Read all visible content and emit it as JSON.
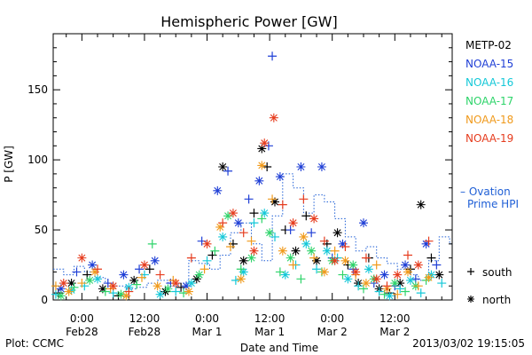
{
  "colors": {
    "METP-02": "#000000",
    "NOAA-15": "#1f3fd6",
    "NOAA-16": "#14c8d8",
    "NOAA-17": "#2ed46a",
    "NOAA-18": "#f09a1c",
    "NOAA-19": "#e63c1e",
    "ovation": "#1f5fd6"
  },
  "footer": {
    "left": "Plot: CCMC",
    "right": "2013/03/02 19:15:05"
  },
  "chart_data": {
    "type": "scatter",
    "title": "Hemispheric Power [GW]",
    "xlabel": "Date and Time",
    "ylabel": "P [GW]",
    "ylim": [
      0,
      190
    ],
    "yticks": [
      0,
      50,
      100,
      150
    ],
    "xlim_hours": [
      -5.5,
      71
    ],
    "x_tick_hours": [
      0,
      12,
      24,
      36,
      48,
      60
    ],
    "x_tick_labels": [
      [
        "0:00",
        "Feb28"
      ],
      [
        "12:00",
        "Feb28"
      ],
      [
        "0:00",
        "Mar 1"
      ],
      [
        "12:00",
        "Mar 1"
      ],
      [
        "0:00",
        "Mar 2"
      ],
      [
        "12:00",
        "Mar 2"
      ]
    ],
    "legend": {
      "placement": "right",
      "entries": [
        "METP-02",
        "NOAA-15",
        "NOAA-16",
        "NOAA-17",
        "NOAA-18",
        "NOAA-19"
      ],
      "ovation_label": [
        "– Ovation",
        "Prime HPI"
      ],
      "marker_south": "south",
      "marker_north": "north"
    },
    "ovation_series": {
      "name": "Ovation Prime HPI",
      "hours": [
        -5.5,
        -3.5,
        -1.5,
        0.5,
        2.5,
        4.5,
        6.5,
        8.5,
        10.5,
        12.5,
        14.5,
        16.5,
        18.5,
        20.5,
        22.5,
        24.5,
        26.5,
        28.5,
        30.5,
        32.5,
        34.5,
        36.5,
        38.5,
        40.5,
        42.5,
        44.5,
        46.5,
        48.5,
        50.5,
        52.5,
        54.5,
        56.5,
        58.5,
        60.5,
        62.5,
        64.5,
        66.5,
        68.5,
        70.5
      ],
      "values": [
        22,
        18,
        24,
        20,
        16,
        12,
        10,
        8,
        9,
        12,
        14,
        10,
        12,
        28,
        26,
        22,
        32,
        48,
        55,
        40,
        28,
        60,
        90,
        80,
        62,
        75,
        70,
        58,
        45,
        35,
        38,
        30,
        26,
        22,
        18,
        14,
        28,
        45,
        40
      ]
    },
    "series": [
      {
        "name": "METP-02",
        "points": [
          [
            -4.5,
            5,
            "s"
          ],
          [
            -2,
            12,
            "n"
          ],
          [
            1,
            18,
            "s"
          ],
          [
            4,
            8,
            "n"
          ],
          [
            7,
            3,
            "s"
          ],
          [
            10,
            14,
            "n"
          ],
          [
            13,
            22,
            "s"
          ],
          [
            16,
            6,
            "n"
          ],
          [
            19,
            9,
            "s"
          ],
          [
            22,
            15,
            "n"
          ],
          [
            25,
            32,
            "s"
          ],
          [
            27,
            95,
            "n"
          ],
          [
            29,
            40,
            "s"
          ],
          [
            31,
            28,
            "n"
          ],
          [
            33,
            62,
            "s"
          ],
          [
            34.5,
            108,
            "n"
          ],
          [
            35.5,
            95,
            "s"
          ],
          [
            37,
            70,
            "n"
          ],
          [
            39,
            50,
            "s"
          ],
          [
            41,
            35,
            "n"
          ],
          [
            43,
            60,
            "s"
          ],
          [
            45,
            28,
            "n"
          ],
          [
            47,
            40,
            "s"
          ],
          [
            49,
            48,
            "n"
          ],
          [
            51,
            25,
            "s"
          ],
          [
            53,
            12,
            "n"
          ],
          [
            55,
            30,
            "s"
          ],
          [
            57,
            8,
            "n"
          ],
          [
            59,
            5,
            "s"
          ],
          [
            61,
            12,
            "n"
          ],
          [
            63,
            22,
            "s"
          ],
          [
            65,
            68,
            "n"
          ],
          [
            67,
            30,
            "s"
          ],
          [
            68.5,
            18,
            "n"
          ]
        ]
      },
      {
        "name": "NOAA-15",
        "points": [
          [
            -4,
            8,
            "n"
          ],
          [
            -1,
            20,
            "s"
          ],
          [
            2,
            25,
            "n"
          ],
          [
            5,
            12,
            "s"
          ],
          [
            8,
            18,
            "n"
          ],
          [
            11,
            22,
            "s"
          ],
          [
            14,
            28,
            "n"
          ],
          [
            17,
            12,
            "s"
          ],
          [
            20,
            10,
            "n"
          ],
          [
            23,
            42,
            "s"
          ],
          [
            26,
            78,
            "n"
          ],
          [
            28,
            92,
            "s"
          ],
          [
            30,
            55,
            "n"
          ],
          [
            32,
            72,
            "s"
          ],
          [
            34,
            85,
            "n"
          ],
          [
            35.8,
            110,
            "s"
          ],
          [
            36.5,
            174,
            "s"
          ],
          [
            38,
            88,
            "n"
          ],
          [
            40,
            50,
            "s"
          ],
          [
            42,
            95,
            "n"
          ],
          [
            44,
            48,
            "s"
          ],
          [
            46,
            95,
            "n"
          ],
          [
            48,
            30,
            "s"
          ],
          [
            50,
            40,
            "n"
          ],
          [
            52,
            22,
            "s"
          ],
          [
            54,
            55,
            "n"
          ],
          [
            56,
            12,
            "s"
          ],
          [
            58,
            18,
            "n"
          ],
          [
            60,
            10,
            "s"
          ],
          [
            62,
            25,
            "n"
          ],
          [
            64,
            15,
            "s"
          ],
          [
            66,
            40,
            "n"
          ],
          [
            68,
            25,
            "s"
          ]
        ]
      },
      {
        "name": "NOAA-16",
        "points": [
          [
            -5,
            4,
            "s"
          ],
          [
            -2,
            7,
            "n"
          ],
          [
            0.5,
            10,
            "s"
          ],
          [
            3,
            15,
            "n"
          ],
          [
            6,
            5,
            "s"
          ],
          [
            9,
            9,
            "n"
          ],
          [
            12,
            18,
            "s"
          ],
          [
            15,
            4,
            "n"
          ],
          [
            18,
            6,
            "s"
          ],
          [
            21,
            12,
            "n"
          ],
          [
            24,
            28,
            "s"
          ],
          [
            27,
            45,
            "n"
          ],
          [
            29.5,
            14,
            "s"
          ],
          [
            31,
            20,
            "n"
          ],
          [
            33,
            55,
            "s"
          ],
          [
            35,
            62,
            "n"
          ],
          [
            37,
            45,
            "s"
          ],
          [
            39,
            18,
            "n"
          ],
          [
            41,
            25,
            "s"
          ],
          [
            43,
            40,
            "n"
          ],
          [
            45,
            22,
            "s"
          ],
          [
            47,
            35,
            "n"
          ],
          [
            49,
            30,
            "s"
          ],
          [
            51,
            15,
            "n"
          ],
          [
            53,
            10,
            "s"
          ],
          [
            55,
            22,
            "n"
          ],
          [
            57,
            6,
            "s"
          ],
          [
            59,
            3,
            "n"
          ],
          [
            61,
            8,
            "s"
          ],
          [
            63,
            14,
            "n"
          ],
          [
            65,
            5,
            "s"
          ],
          [
            67,
            18,
            "n"
          ],
          [
            69,
            12,
            "s"
          ]
        ]
      },
      {
        "name": "NOAA-17",
        "points": [
          [
            -4,
            3,
            "n"
          ],
          [
            -1.5,
            9,
            "s"
          ],
          [
            1.5,
            14,
            "n"
          ],
          [
            4.5,
            6,
            "s"
          ],
          [
            7.5,
            4,
            "n"
          ],
          [
            10.5,
            11,
            "s"
          ],
          [
            13.5,
            40,
            "s"
          ],
          [
            16.5,
            8,
            "n"
          ],
          [
            19.5,
            5,
            "s"
          ],
          [
            22.5,
            18,
            "n"
          ],
          [
            25.5,
            35,
            "s"
          ],
          [
            28,
            60,
            "n"
          ],
          [
            30.5,
            22,
            "s"
          ],
          [
            32.5,
            30,
            "n"
          ],
          [
            34.5,
            58,
            "s"
          ],
          [
            36,
            48,
            "n"
          ],
          [
            38,
            20,
            "s"
          ],
          [
            40,
            30,
            "n"
          ],
          [
            42,
            15,
            "s"
          ],
          [
            44,
            35,
            "n"
          ],
          [
            46,
            20,
            "s"
          ],
          [
            48,
            28,
            "n"
          ],
          [
            50,
            18,
            "s"
          ],
          [
            52,
            25,
            "n"
          ],
          [
            54,
            8,
            "s"
          ],
          [
            56,
            15,
            "n"
          ],
          [
            58,
            4,
            "s"
          ],
          [
            60,
            12,
            "n"
          ],
          [
            62,
            6,
            "s"
          ],
          [
            64,
            10,
            "n"
          ],
          [
            66,
            14,
            "s"
          ]
        ]
      },
      {
        "name": "NOAA-18",
        "points": [
          [
            -5,
            10,
            "s"
          ],
          [
            -2.5,
            6,
            "n"
          ],
          [
            0,
            12,
            "s"
          ],
          [
            2.5,
            20,
            "n"
          ],
          [
            5.5,
            8,
            "s"
          ],
          [
            8.5,
            3,
            "n"
          ],
          [
            11.5,
            16,
            "s"
          ],
          [
            14.5,
            10,
            "n"
          ],
          [
            17.5,
            14,
            "s"
          ],
          [
            20.5,
            6,
            "n"
          ],
          [
            23.5,
            22,
            "s"
          ],
          [
            26.5,
            52,
            "n"
          ],
          [
            28.5,
            38,
            "s"
          ],
          [
            30.5,
            15,
            "n"
          ],
          [
            32.5,
            42,
            "s"
          ],
          [
            34.5,
            96,
            "n"
          ],
          [
            36.5,
            72,
            "s"
          ],
          [
            38.5,
            35,
            "n"
          ],
          [
            40.5,
            25,
            "s"
          ],
          [
            42.5,
            45,
            "n"
          ],
          [
            44.5,
            30,
            "s"
          ],
          [
            46.5,
            20,
            "n"
          ],
          [
            48.5,
            35,
            "s"
          ],
          [
            50.5,
            28,
            "n"
          ],
          [
            52.5,
            18,
            "s"
          ],
          [
            54.5,
            12,
            "n"
          ],
          [
            56.5,
            25,
            "s"
          ],
          [
            58.5,
            8,
            "n"
          ],
          [
            60.5,
            4,
            "s"
          ],
          [
            62.5,
            20,
            "n"
          ],
          [
            64.5,
            10,
            "s"
          ],
          [
            66.5,
            16,
            "n"
          ]
        ]
      },
      {
        "name": "NOAA-19",
        "points": [
          [
            -3.5,
            12,
            "n"
          ],
          [
            0,
            30,
            "n"
          ],
          [
            3,
            22,
            "s"
          ],
          [
            6,
            10,
            "n"
          ],
          [
            9,
            6,
            "s"
          ],
          [
            12,
            25,
            "n"
          ],
          [
            15,
            18,
            "s"
          ],
          [
            18,
            12,
            "n"
          ],
          [
            21,
            30,
            "s"
          ],
          [
            24,
            40,
            "n"
          ],
          [
            27,
            55,
            "s"
          ],
          [
            29,
            62,
            "n"
          ],
          [
            31,
            48,
            "s"
          ],
          [
            33,
            35,
            "n"
          ],
          [
            35,
            112,
            "n"
          ],
          [
            36.8,
            130,
            "n"
          ],
          [
            38.5,
            68,
            "s"
          ],
          [
            40.5,
            55,
            "n"
          ],
          [
            42.5,
            72,
            "s"
          ],
          [
            44.5,
            58,
            "n"
          ],
          [
            46.5,
            42,
            "s"
          ],
          [
            48.5,
            28,
            "n"
          ],
          [
            50.5,
            38,
            "s"
          ],
          [
            52.5,
            20,
            "n"
          ],
          [
            54.5,
            30,
            "s"
          ],
          [
            56.5,
            15,
            "n"
          ],
          [
            58.5,
            10,
            "s"
          ],
          [
            60.5,
            18,
            "n"
          ],
          [
            62.5,
            32,
            "s"
          ],
          [
            64.5,
            25,
            "n"
          ],
          [
            66.5,
            42,
            "s"
          ]
        ]
      }
    ]
  }
}
